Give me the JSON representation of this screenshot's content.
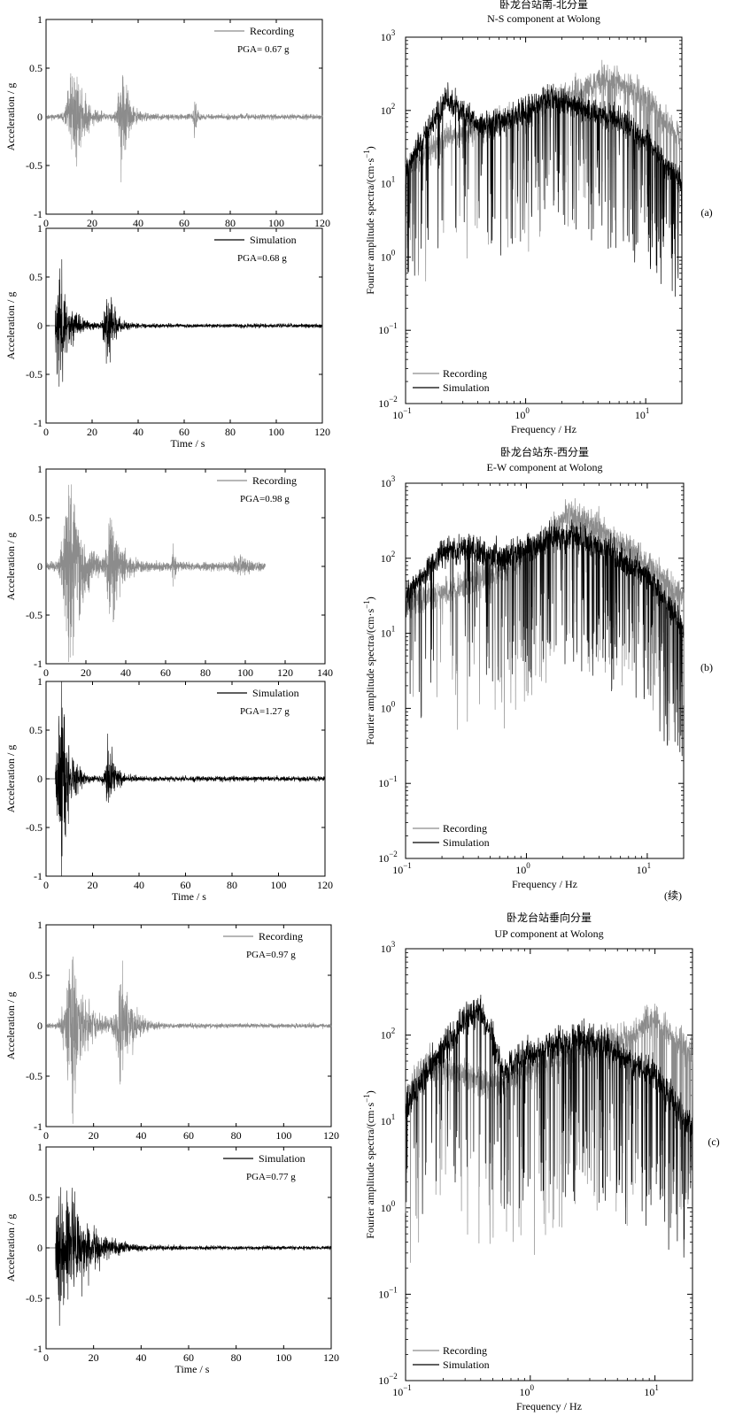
{
  "colors": {
    "recording": "#8c8c8c",
    "simulation": "#000000",
    "axis": "#000000",
    "background": "#ffffff"
  },
  "continued_note": "(续)",
  "chart_data": [
    {
      "id": "a-ns-recording",
      "type": "line",
      "group": "a",
      "title": "",
      "ylabel": "Acceleration / g",
      "xlabel": "",
      "xlim": [
        0,
        120
      ],
      "ylim": [
        -1,
        1
      ],
      "xticks": [
        0,
        20,
        40,
        60,
        80,
        100,
        120
      ],
      "yticks": [
        -1,
        -0.5,
        0,
        0.5,
        1
      ],
      "legend": "top-right",
      "series": [
        {
          "name": "Recording",
          "color": "#8c8c8c",
          "pga": 0.67,
          "bursts": [
            {
              "t": 12,
              "amp": 0.6,
              "decay": 4
            },
            {
              "t": 33,
              "amp": 0.48,
              "decay": 3
            },
            {
              "t": 64.5,
              "amp": 0.2,
              "decay": 0.8
            }
          ],
          "base_noise": 0.025,
          "t_end": 120,
          "seed": 11
        }
      ],
      "pga_text": "PGA= 0.67 g"
    },
    {
      "id": "a-ns-simulation",
      "type": "line",
      "group": "a",
      "ylabel": "Acceleration / g",
      "xlabel": "Time / s",
      "xlim": [
        0,
        120
      ],
      "ylim": [
        -1,
        1
      ],
      "xticks": [
        0,
        20,
        40,
        60,
        80,
        100,
        120
      ],
      "yticks": [
        -1,
        -0.5,
        0,
        0.5,
        1
      ],
      "legend": "top-right",
      "series": [
        {
          "name": "Simulation",
          "color": "#000000",
          "pga": 0.68,
          "bursts": [
            {
              "t": 6,
              "amp": 0.62,
              "decay": 4
            },
            {
              "t": 27,
              "amp": 0.38,
              "decay": 3
            }
          ],
          "base_noise": 0.02,
          "t_start": 4,
          "t_end": 120,
          "seed": 23
        }
      ],
      "pga_text": "PGA=0.68 g"
    },
    {
      "id": "a-ns-spectrum",
      "type": "line",
      "group": "a",
      "title": "卧龙台站南-北分量",
      "subtitle": "N-S component at Wolong",
      "ylabel": "Fourier amplitude spectra/(cm·s",
      "ylabel_sup": "−1",
      "ylabel_close": ")",
      "xlabel": "Frequency / Hz",
      "x_scale": "log",
      "y_scale": "log",
      "xlim": [
        0.1,
        20
      ],
      "ylim": [
        0.01,
        1000
      ],
      "xticks": [
        0.1,
        1,
        10
      ],
      "xtick_labels": [
        {
          "b": "10",
          "e": "−1"
        },
        {
          "b": "10",
          "e": "0"
        },
        {
          "b": "10",
          "e": "1"
        }
      ],
      "yticks": [
        0.01,
        0.1,
        1,
        10,
        100,
        1000
      ],
      "ytick_labels": [
        {
          "b": "10",
          "e": "−2"
        },
        {
          "b": "10",
          "e": "−1"
        },
        {
          "b": "10",
          "e": "0"
        },
        {
          "b": "10",
          "e": "1"
        },
        {
          "b": "10",
          "e": "2"
        },
        {
          "b": "10",
          "e": "3"
        }
      ],
      "legend": "bottom-left",
      "series": [
        {
          "name": "Recording",
          "color": "#8c8c8c",
          "envelope": [
            [
              0.1,
              15
            ],
            [
              0.2,
              40
            ],
            [
              0.5,
              60
            ],
            [
              1,
              90
            ],
            [
              2,
              150
            ],
            [
              5,
              280
            ],
            [
              10,
              150
            ],
            [
              20,
              40
            ]
          ],
          "dips": 5,
          "seed": 41
        },
        {
          "name": "Simulation",
          "color": "#000000",
          "envelope": [
            [
              0.1,
              15
            ],
            [
              0.15,
              50
            ],
            [
              0.22,
              150
            ],
            [
              0.4,
              60
            ],
            [
              1,
              90
            ],
            [
              1.4,
              150
            ],
            [
              3,
              110
            ],
            [
              6,
              70
            ],
            [
              10,
              40
            ],
            [
              20,
              10
            ]
          ],
          "dips": 5,
          "seed": 57
        }
      ],
      "panel_letter": "(a)"
    },
    {
      "id": "b-ew-recording",
      "type": "line",
      "group": "b",
      "ylabel": "Acceleration / g",
      "xlabel": "",
      "xlim": [
        0,
        140
      ],
      "ylim": [
        -1,
        1
      ],
      "xticks": [
        0,
        20,
        40,
        60,
        80,
        100,
        120,
        140
      ],
      "yticks": [
        -1,
        -0.5,
        0,
        0.5,
        1
      ],
      "legend": "top-right",
      "series": [
        {
          "name": "Recording",
          "color": "#8c8c8c",
          "pga": 0.98,
          "bursts": [
            {
              "t": 12,
              "amp": 0.75,
              "decay": 5
            },
            {
              "t": 33,
              "amp": 0.38,
              "decay": 4
            },
            {
              "t": 64,
              "amp": 0.15,
              "decay": 1
            },
            {
              "t": 97,
              "amp": 0.06,
              "decay": 4
            }
          ],
          "base_noise": 0.03,
          "t_end": 110,
          "seed": 71
        }
      ],
      "pga_text": "PGA=0.98 g"
    },
    {
      "id": "b-ew-simulation",
      "type": "line",
      "group": "b",
      "ylabel": "Acceleration / g",
      "xlabel": "Time / s",
      "xlim": [
        0,
        120
      ],
      "ylim": [
        -1,
        1
      ],
      "xticks": [
        0,
        20,
        40,
        60,
        80,
        100,
        120
      ],
      "yticks": [
        -1,
        -0.5,
        0,
        0.5,
        1
      ],
      "legend": "top-right",
      "series": [
        {
          "name": "Simulation",
          "color": "#000000",
          "pga": 1.27,
          "bursts": [
            {
              "t": 6.5,
              "amp": 1.2,
              "decay": 3
            },
            {
              "t": 27,
              "amp": 0.4,
              "decay": 2.5
            }
          ],
          "base_noise": 0.025,
          "t_start": 4,
          "t_end": 120,
          "seed": 89
        }
      ],
      "pga_text": "PGA=1.27 g"
    },
    {
      "id": "b-ew-spectrum",
      "type": "line",
      "group": "b",
      "title": "卧龙台站东-西分量",
      "subtitle": "E-W  component at Wolong",
      "ylabel": "Fourier amplitude spectra/(cm·s",
      "ylabel_sup": "−1",
      "ylabel_close": ")",
      "xlabel": "Frequency / Hz",
      "x_scale": "log",
      "y_scale": "log",
      "xlim": [
        0.1,
        20
      ],
      "ylim": [
        0.01,
        1000
      ],
      "xticks": [
        0.1,
        1,
        10
      ],
      "xtick_labels": [
        {
          "b": "10",
          "e": "−1"
        },
        {
          "b": "10",
          "e": "0"
        },
        {
          "b": "10",
          "e": "1"
        }
      ],
      "yticks": [
        0.01,
        0.1,
        1,
        10,
        100,
        1000
      ],
      "ytick_labels": [
        {
          "b": "10",
          "e": "−2"
        },
        {
          "b": "10",
          "e": "−1"
        },
        {
          "b": "10",
          "e": "0"
        },
        {
          "b": "10",
          "e": "1"
        },
        {
          "b": "10",
          "e": "2"
        },
        {
          "b": "10",
          "e": "3"
        }
      ],
      "legend": "bottom-left",
      "series": [
        {
          "name": "Recording",
          "color": "#8c8c8c",
          "envelope": [
            [
              0.1,
              25
            ],
            [
              0.2,
              35
            ],
            [
              0.5,
              60
            ],
            [
              1,
              100
            ],
            [
              2.2,
              400
            ],
            [
              4,
              250
            ],
            [
              8,
              120
            ],
            [
              20,
              30
            ]
          ],
          "dips": 6,
          "seed": 101
        },
        {
          "name": "Simulation",
          "color": "#000000",
          "envelope": [
            [
              0.1,
              30
            ],
            [
              0.2,
              120
            ],
            [
              0.3,
              140
            ],
            [
              0.6,
              100
            ],
            [
              1.5,
              180
            ],
            [
              2.5,
              200
            ],
            [
              5,
              120
            ],
            [
              10,
              60
            ],
            [
              20,
              12
            ]
          ],
          "dips": 5,
          "seed": 113
        }
      ],
      "panel_letter": "(b)"
    },
    {
      "id": "c-up-recording",
      "type": "line",
      "group": "c",
      "ylabel": "Acceleration / g",
      "xlabel": "",
      "xlim": [
        0,
        120
      ],
      "ylim": [
        -1,
        1
      ],
      "xticks": [
        0,
        20,
        40,
        60,
        80,
        100,
        120
      ],
      "yticks": [
        -1,
        -0.5,
        0,
        0.5,
        1
      ],
      "legend": "top-right",
      "series": [
        {
          "name": "Recording",
          "color": "#8c8c8c",
          "pga": 0.97,
          "bursts": [
            {
              "t": 11,
              "amp": 0.7,
              "decay": 5
            },
            {
              "t": 32,
              "amp": 0.5,
              "decay": 4
            }
          ],
          "base_noise": 0.02,
          "t_end": 120,
          "seed": 131
        }
      ],
      "pga_text": "PGA=0.97 g"
    },
    {
      "id": "c-up-simulation",
      "type": "line",
      "group": "c",
      "ylabel": "Acceleration / g",
      "xlabel": "Time / s",
      "xlim": [
        0,
        120
      ],
      "ylim": [
        -1,
        1
      ],
      "xticks": [
        0,
        20,
        40,
        60,
        80,
        100,
        120
      ],
      "yticks": [
        -1,
        -0.5,
        0,
        0.5,
        1
      ],
      "legend": "top-right",
      "series": [
        {
          "name": "Simulation",
          "color": "#000000",
          "pga": 0.77,
          "bursts": [
            {
              "t": 6,
              "amp": 0.7,
              "decay": 7
            },
            {
              "t": 13,
              "amp": 0.35,
              "decay": 9
            }
          ],
          "base_noise": 0.025,
          "t_start": 4,
          "t_end": 120,
          "seed": 149
        }
      ],
      "pga_text": "PGA=0.77 g"
    },
    {
      "id": "c-up-spectrum",
      "type": "line",
      "group": "c",
      "title": "卧龙台站垂向分量",
      "subtitle": "UP component at Wolong",
      "ylabel": "Fourier amplitude spectra/(cm·s",
      "ylabel_sup": "−1",
      "ylabel_close": ")",
      "xlabel": "Frequency / Hz",
      "x_scale": "log",
      "y_scale": "log",
      "xlim": [
        0.1,
        20
      ],
      "ylim": [
        0.01,
        1000
      ],
      "xticks": [
        0.1,
        1,
        10
      ],
      "xtick_labels": [
        {
          "b": "10",
          "e": "−1"
        },
        {
          "b": "10",
          "e": "0"
        },
        {
          "b": "10",
          "e": "1"
        }
      ],
      "yticks": [
        0.01,
        0.1,
        1,
        10,
        100,
        1000
      ],
      "ytick_labels": [
        {
          "b": "10",
          "e": "−2"
        },
        {
          "b": "10",
          "e": "−1"
        },
        {
          "b": "10",
          "e": "0"
        },
        {
          "b": "10",
          "e": "1"
        },
        {
          "b": "10",
          "e": "2"
        },
        {
          "b": "10",
          "e": "3"
        }
      ],
      "legend": "bottom-left",
      "series": [
        {
          "name": "Recording",
          "color": "#8c8c8c",
          "envelope": [
            [
              0.1,
              20
            ],
            [
              0.15,
              45
            ],
            [
              0.3,
              35
            ],
            [
              0.5,
              25
            ],
            [
              1,
              40
            ],
            [
              2,
              60
            ],
            [
              5,
              90
            ],
            [
              10,
              150
            ],
            [
              20,
              60
            ]
          ],
          "dips": 6,
          "seed": 163
        },
        {
          "name": "Simulation",
          "color": "#000000",
          "envelope": [
            [
              0.1,
              15
            ],
            [
              0.2,
              70
            ],
            [
              0.3,
              150
            ],
            [
              0.4,
              200
            ],
            [
              0.6,
              40
            ],
            [
              1,
              60
            ],
            [
              2.5,
              100
            ],
            [
              5,
              60
            ],
            [
              10,
              35
            ],
            [
              20,
              8
            ]
          ],
          "dips": 5,
          "seed": 179
        }
      ],
      "panel_letter": "(c)"
    }
  ]
}
